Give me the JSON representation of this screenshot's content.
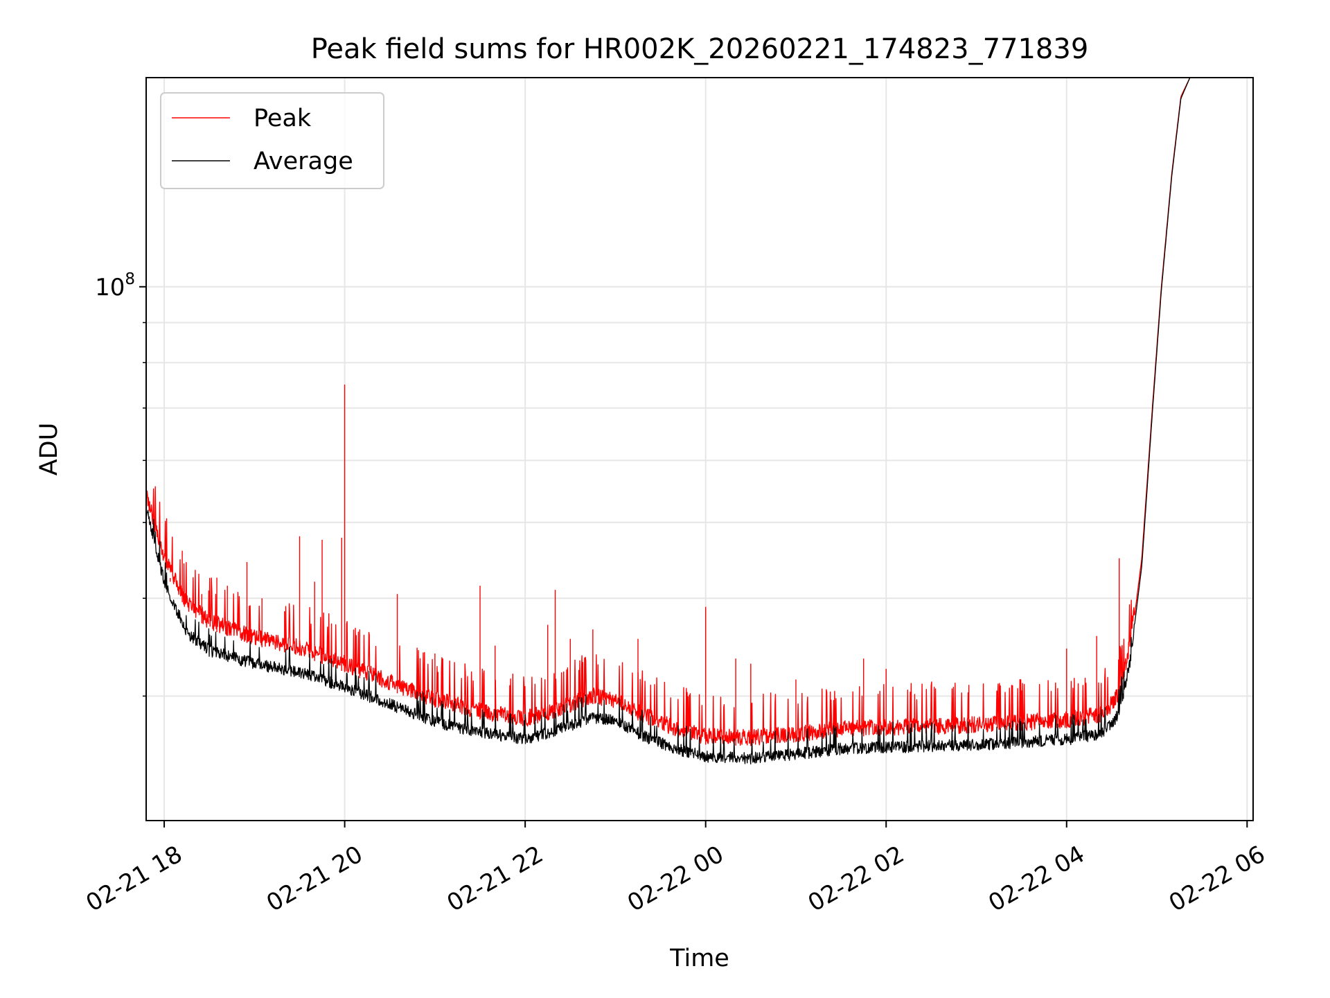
{
  "chart_data": {
    "type": "line",
    "title": "Peak field sums for HR002K_20260221_174823_771839",
    "xlabel": "Time",
    "ylabel": "ADU",
    "y_scale": "log",
    "ylim": [
      20800000,
      185000000
    ],
    "xlim": [
      "2026-02-21 17:48",
      "2026-02-22 06:04"
    ],
    "grid": true,
    "grid_minor_y": true,
    "legend_position": "top-left",
    "x_ticks": [
      {
        "value": "2026-02-21 18:00",
        "label": "02-21 18"
      },
      {
        "value": "2026-02-21 20:00",
        "label": "02-21 20"
      },
      {
        "value": "2026-02-21 22:00",
        "label": "02-21 22"
      },
      {
        "value": "2026-02-22 00:00",
        "label": "02-22 00"
      },
      {
        "value": "2026-02-22 02:00",
        "label": "02-22 02"
      },
      {
        "value": "2026-02-22 04:00",
        "label": "02-22 04"
      },
      {
        "value": "2026-02-22 06:00",
        "label": "02-22 06"
      }
    ],
    "y_major_ticks": [
      {
        "value": 100000000,
        "mantissa": "10",
        "exponent": "8"
      }
    ],
    "y_minor_ticks": [
      30000000,
      40000000,
      50000000,
      60000000,
      70000000,
      80000000,
      90000000,
      200000000
    ],
    "series": [
      {
        "name": "Peak",
        "color": "#ff0000",
        "points": [
          [
            "2026-02-21 17:48",
            53000000
          ],
          [
            "2026-02-21 18:00",
            44000000
          ],
          [
            "2026-02-21 18:15",
            38500000
          ],
          [
            "2026-02-21 18:30",
            36500000
          ],
          [
            "2026-02-21 19:00",
            34800000
          ],
          [
            "2026-02-21 19:30",
            33800000
          ],
          [
            "2026-02-21 20:00",
            32200000
          ],
          [
            "2026-02-21 20:30",
            30500000
          ],
          [
            "2026-02-21 21:00",
            29000000
          ],
          [
            "2026-02-21 21:30",
            28000000
          ],
          [
            "2026-02-21 22:00",
            27400000
          ],
          [
            "2026-02-21 22:20",
            28100000
          ],
          [
            "2026-02-21 22:45",
            29300000
          ],
          [
            "2026-02-21 23:00",
            28900000
          ],
          [
            "2026-02-21 23:20",
            27600000
          ],
          [
            "2026-02-21 23:40",
            26600000
          ],
          [
            "2026-02-22 00:00",
            26000000
          ],
          [
            "2026-02-22 00:30",
            25900000
          ],
          [
            "2026-02-22 01:00",
            26200000
          ],
          [
            "2026-02-22 01:30",
            26600000
          ],
          [
            "2026-02-22 02:00",
            26700000
          ],
          [
            "2026-02-22 03:00",
            26900000
          ],
          [
            "2026-02-22 04:00",
            27300000
          ],
          [
            "2026-02-22 04:25",
            27800000
          ],
          [
            "2026-02-22 04:35",
            29500000
          ],
          [
            "2026-02-22 04:42",
            34000000
          ],
          [
            "2026-02-22 04:50",
            45000000
          ],
          [
            "2026-02-22 04:57",
            70000000
          ],
          [
            "2026-02-22 05:03",
            100000000
          ],
          [
            "2026-02-22 05:10",
            140000000
          ],
          [
            "2026-02-22 05:16",
            175000000
          ],
          [
            "2026-02-22 05:22",
            185000000
          ]
        ],
        "spikes": [
          [
            "2026-02-21 18:04",
            42000000
          ],
          [
            "2026-02-21 18:12",
            46000000
          ],
          [
            "2026-02-21 18:25",
            40500000
          ],
          [
            "2026-02-21 18:35",
            42500000
          ],
          [
            "2026-02-21 18:42",
            41500000
          ],
          [
            "2026-02-21 18:55",
            44500000
          ],
          [
            "2026-02-21 19:05",
            40000000
          ],
          [
            "2026-02-21 19:20",
            38500000
          ],
          [
            "2026-02-21 19:30",
            48000000
          ],
          [
            "2026-02-21 19:40",
            42000000
          ],
          [
            "2026-02-21 19:45",
            47500000
          ],
          [
            "2026-02-21 19:58",
            47800000
          ],
          [
            "2026-02-21 20:00",
            75000000
          ],
          [
            "2026-02-21 20:10",
            36500000
          ],
          [
            "2026-02-21 20:35",
            40500000
          ],
          [
            "2026-02-21 21:00",
            34000000
          ],
          [
            "2026-02-21 21:30",
            41500000
          ],
          [
            "2026-02-21 21:40",
            34800000
          ],
          [
            "2026-02-21 22:15",
            37000000
          ],
          [
            "2026-02-21 22:20",
            41000000
          ],
          [
            "2026-02-21 22:30",
            35500000
          ],
          [
            "2026-02-21 22:45",
            36500000
          ],
          [
            "2026-02-21 23:15",
            35500000
          ],
          [
            "2026-02-22 00:00",
            39000000
          ],
          [
            "2026-02-22 00:20",
            33500000
          ],
          [
            "2026-02-22 00:30",
            33000000
          ],
          [
            "2026-02-22 01:00",
            31500000
          ],
          [
            "2026-02-22 01:45",
            33500000
          ],
          [
            "2026-02-22 02:00",
            32500000
          ],
          [
            "2026-02-22 02:55",
            31000000
          ],
          [
            "2026-02-22 03:30",
            30500000
          ],
          [
            "2026-02-22 04:00",
            34500000
          ],
          [
            "2026-02-22 04:20",
            35800000
          ],
          [
            "2026-02-22 04:35",
            45000000
          ]
        ]
      },
      {
        "name": "Average",
        "color": "#000000",
        "points": [
          [
            "2026-02-21 17:48",
            52000000
          ],
          [
            "2026-02-21 18:00",
            42000000
          ],
          [
            "2026-02-21 18:15",
            36200000
          ],
          [
            "2026-02-21 18:30",
            34300000
          ],
          [
            "2026-02-21 19:00",
            33000000
          ],
          [
            "2026-02-21 19:30",
            32200000
          ],
          [
            "2026-02-21 20:00",
            30800000
          ],
          [
            "2026-02-21 20:30",
            29300000
          ],
          [
            "2026-02-21 21:00",
            27800000
          ],
          [
            "2026-02-21 21:30",
            27000000
          ],
          [
            "2026-02-21 22:00",
            26400000
          ],
          [
            "2026-02-21 22:20",
            27100000
          ],
          [
            "2026-02-21 22:45",
            28200000
          ],
          [
            "2026-02-21 23:00",
            27900000
          ],
          [
            "2026-02-21 23:20",
            26600000
          ],
          [
            "2026-02-21 23:40",
            25700000
          ],
          [
            "2026-02-22 00:00",
            25100000
          ],
          [
            "2026-02-22 00:30",
            25000000
          ],
          [
            "2026-02-22 01:00",
            25300000
          ],
          [
            "2026-02-22 01:30",
            25700000
          ],
          [
            "2026-02-22 02:00",
            25800000
          ],
          [
            "2026-02-22 03:00",
            26000000
          ],
          [
            "2026-02-22 04:00",
            26400000
          ],
          [
            "2026-02-22 04:25",
            26900000
          ],
          [
            "2026-02-22 04:35",
            28500000
          ],
          [
            "2026-02-22 04:42",
            33000000
          ],
          [
            "2026-02-22 04:50",
            44000000
          ],
          [
            "2026-02-22 04:57",
            69000000
          ],
          [
            "2026-02-22 05:03",
            99000000
          ],
          [
            "2026-02-22 05:10",
            139000000
          ],
          [
            "2026-02-22 05:16",
            174000000
          ],
          [
            "2026-02-22 05:22",
            185000000
          ]
        ]
      }
    ]
  }
}
